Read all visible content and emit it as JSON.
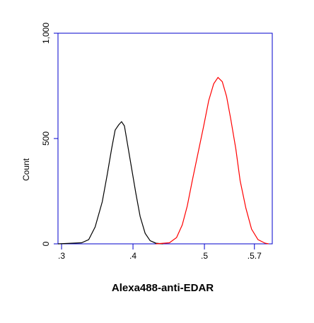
{
  "chart_data": {
    "type": "line",
    "xlabel": "Alexa488-anti-EDAR",
    "ylabel": "Count",
    "xscale": "log",
    "axis_color": "#0000cc",
    "xlim": [
      2.95,
      5.95
    ],
    "ylim": [
      0,
      1000
    ],
    "xticks": [
      {
        "value": 3,
        "label": ".3"
      },
      {
        "value": 4,
        "label": ".4"
      },
      {
        "value": 5,
        "label": ".5"
      },
      {
        "value": 5.7,
        "label": ".5.7"
      }
    ],
    "yticks": [
      0,
      500,
      {
        "value": 1000,
        "label": "1,000"
      }
    ],
    "grid": false,
    "series": [
      {
        "color": "#000000",
        "x": [
          2.95,
          3.28,
          3.38,
          3.47,
          3.57,
          3.64,
          3.7,
          3.75,
          3.8,
          3.84,
          3.88,
          3.92,
          3.98,
          4.04,
          4.1,
          4.17,
          4.24,
          4.32,
          4.42
        ],
        "values": [
          0,
          5,
          20,
          80,
          200,
          330,
          450,
          540,
          565,
          580,
          560,
          480,
          360,
          240,
          130,
          50,
          15,
          3,
          0
        ]
      },
      {
        "color": "#ff0000",
        "x": [
          4.32,
          4.51,
          4.61,
          4.69,
          4.76,
          4.83,
          4.91,
          4.99,
          5.06,
          5.13,
          5.19,
          5.25,
          5.31,
          5.37,
          5.44,
          5.5,
          5.58,
          5.66,
          5.75,
          5.85,
          5.9
        ],
        "values": [
          0,
          5,
          30,
          90,
          180,
          300,
          430,
          560,
          680,
          760,
          790,
          770,
          700,
          590,
          450,
          300,
          170,
          70,
          20,
          3,
          0
        ]
      }
    ]
  }
}
